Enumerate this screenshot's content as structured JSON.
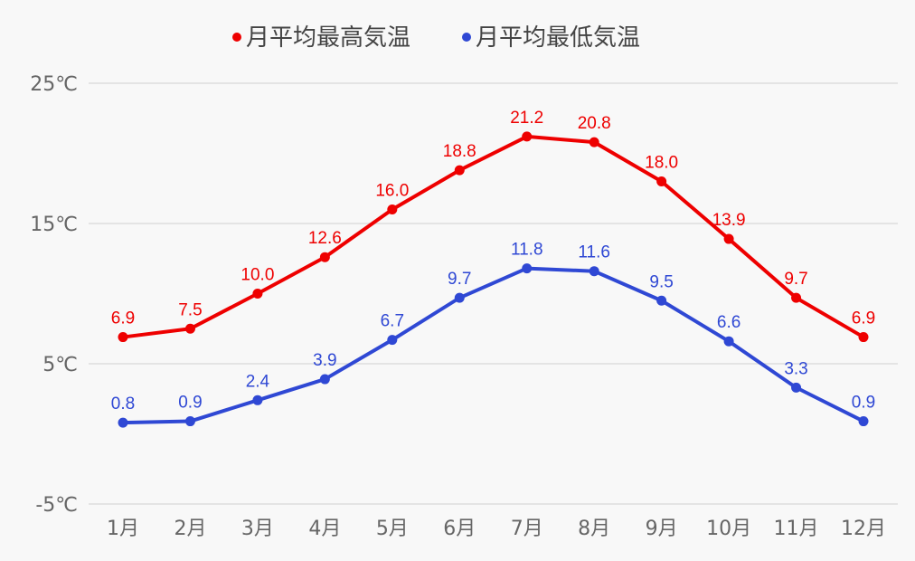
{
  "chart_data": {
    "type": "line",
    "categories": [
      "1月",
      "2月",
      "3月",
      "4月",
      "5月",
      "6月",
      "7月",
      "8月",
      "9月",
      "10月",
      "11月",
      "12月"
    ],
    "series": [
      {
        "name": "月平均最高気温",
        "color": "#ee0000",
        "values": [
          6.9,
          7.5,
          10.0,
          12.6,
          16.0,
          18.8,
          21.2,
          20.8,
          18.0,
          13.9,
          9.7,
          6.9
        ]
      },
      {
        "name": "月平均最低気温",
        "color": "#2f48d4",
        "values": [
          0.8,
          0.9,
          2.4,
          3.9,
          6.7,
          9.7,
          11.8,
          11.6,
          9.5,
          6.6,
          3.3,
          0.9
        ]
      }
    ],
    "yticks": [
      {
        "value": 25,
        "label": "25℃"
      },
      {
        "value": 15,
        "label": "15℃"
      },
      {
        "value": 5,
        "label": "5℃"
      },
      {
        "value": -5,
        "label": "-5℃"
      }
    ],
    "ylim": [
      -5,
      25
    ],
    "grid": true,
    "legend": "top",
    "data_labels": true
  }
}
